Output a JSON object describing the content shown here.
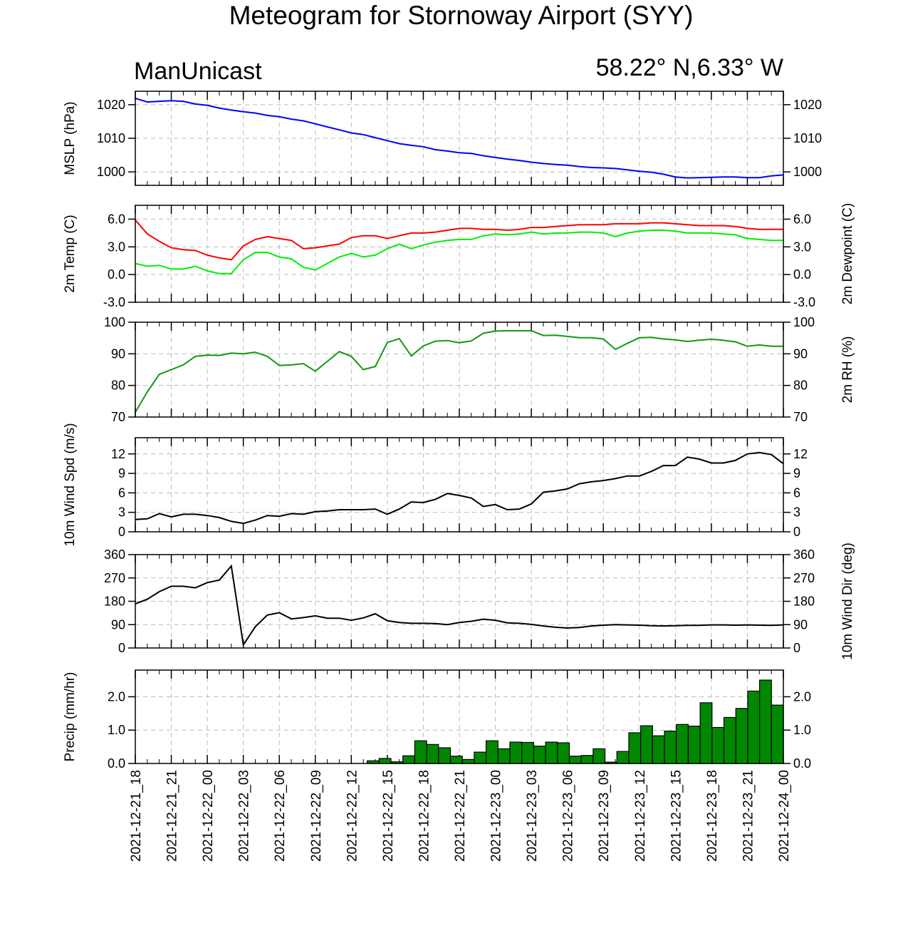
{
  "title": "Meteogram for Stornoway Airport (SYY)",
  "model": "ManUnicast",
  "location": "58.22° N,6.33° W",
  "chart_data": [
    {
      "type": "line",
      "ylabel": "MSLP (hPa)",
      "right_label": "",
      "ylim": [
        996,
        1024
      ],
      "yticks": [
        1000,
        1010,
        1020
      ],
      "yticklabels": [
        "1000",
        "1010",
        "1020"
      ],
      "series": [
        {
          "color": "#0000ff",
          "values": [
            1021.9,
            1020.8,
            1021.0,
            1021.2,
            1021.0,
            1020.2,
            1019.8,
            1019.0,
            1018.4,
            1017.9,
            1017.5,
            1016.8,
            1016.4,
            1015.7,
            1015.2,
            1014.3,
            1013.4,
            1012.5,
            1011.6,
            1011.1,
            1010.2,
            1009.3,
            1008.4,
            1007.9,
            1007.5,
            1006.6,
            1006.2,
            1005.7,
            1005.5,
            1004.8,
            1004.3,
            1003.8,
            1003.4,
            1002.9,
            1002.5,
            1002.2,
            1002.0,
            1001.6,
            1001.3,
            1001.2,
            1001.0,
            1000.6,
            1000.2,
            999.9,
            999.3,
            998.5,
            998.2,
            998.3,
            998.4,
            998.5,
            998.5,
            998.3,
            998.3,
            998.8,
            999.1
          ]
        }
      ]
    },
    {
      "type": "line",
      "ylabel": "2m Temp (C)",
      "right_label": "2m Dewpoint (C)",
      "ylim": [
        -3,
        7.5
      ],
      "yticks": [
        -3,
        0,
        3,
        6
      ],
      "yticklabels": [
        "-3.0",
        "0.0",
        "3.0",
        "6.0"
      ],
      "series": [
        {
          "color": "#ff0000",
          "values": [
            5.9,
            4.4,
            3.6,
            2.9,
            2.7,
            2.6,
            2.1,
            1.8,
            1.6,
            3.1,
            3.8,
            4.1,
            3.9,
            3.7,
            2.8,
            2.9,
            3.1,
            3.3,
            4.0,
            4.2,
            4.2,
            3.9,
            4.2,
            4.5,
            4.5,
            4.6,
            4.8,
            5.0,
            5.0,
            4.9,
            4.9,
            4.8,
            4.9,
            5.1,
            5.1,
            5.2,
            5.3,
            5.4,
            5.4,
            5.4,
            5.5,
            5.5,
            5.5,
            5.6,
            5.6,
            5.5,
            5.4,
            5.3,
            5.3,
            5.3,
            5.2,
            5.0,
            4.9,
            4.9,
            4.9
          ]
        },
        {
          "color": "#00ee00",
          "values": [
            1.2,
            0.9,
            1.0,
            0.6,
            0.6,
            0.9,
            0.4,
            0.1,
            0.1,
            1.6,
            2.4,
            2.4,
            1.9,
            1.7,
            0.8,
            0.5,
            1.2,
            1.9,
            2.3,
            1.9,
            2.1,
            2.8,
            3.3,
            2.8,
            3.2,
            3.5,
            3.7,
            3.8,
            3.8,
            4.2,
            4.4,
            4.3,
            4.4,
            4.6,
            4.4,
            4.5,
            4.5,
            4.6,
            4.6,
            4.5,
            4.1,
            4.5,
            4.7,
            4.8,
            4.8,
            4.7,
            4.5,
            4.5,
            4.5,
            4.4,
            4.3,
            3.9,
            3.8,
            3.7,
            3.7
          ]
        }
      ]
    },
    {
      "type": "line",
      "ylabel": "",
      "right_label": "2m RH (%)",
      "ylim": [
        70,
        100
      ],
      "yticks": [
        70,
        80,
        90,
        100
      ],
      "yticklabels": [
        "70",
        "80",
        "90",
        "100"
      ],
      "series": [
        {
          "color": "#119911",
          "values": [
            71.5,
            78.0,
            83.5,
            85.0,
            86.5,
            89.2,
            89.6,
            89.5,
            90.2,
            90.0,
            90.5,
            89.2,
            86.3,
            86.5,
            86.9,
            84.5,
            87.6,
            90.7,
            89.2,
            85.0,
            86.0,
            93.6,
            94.8,
            89.3,
            92.5,
            94.0,
            94.2,
            93.5,
            94.1,
            96.5,
            97.2,
            97.3,
            97.3,
            97.3,
            95.8,
            95.9,
            95.5,
            95.1,
            95.1,
            94.7,
            91.4,
            93.3,
            95.1,
            95.2,
            94.7,
            94.4,
            93.9,
            94.3,
            94.6,
            94.3,
            93.8,
            92.4,
            92.8,
            92.4,
            92.4
          ]
        }
      ]
    },
    {
      "type": "line",
      "ylabel": "10m Wind Spd (m/s)",
      "right_label": "",
      "ylim": [
        0,
        14.5
      ],
      "yticks": [
        0,
        3,
        6,
        9,
        12
      ],
      "yticklabels": [
        "0",
        "3",
        "6",
        "9",
        "12"
      ],
      "series": [
        {
          "color": "#000000",
          "values": [
            1.9,
            2.0,
            2.8,
            2.3,
            2.7,
            2.7,
            2.5,
            2.2,
            1.6,
            1.3,
            1.8,
            2.5,
            2.4,
            2.8,
            2.7,
            3.1,
            3.2,
            3.4,
            3.4,
            3.4,
            3.5,
            2.7,
            3.5,
            4.6,
            4.5,
            5.0,
            5.9,
            5.6,
            5.2,
            3.9,
            4.2,
            3.4,
            3.5,
            4.3,
            6.1,
            6.3,
            6.6,
            7.4,
            7.7,
            7.9,
            8.2,
            8.6,
            8.6,
            9.3,
            10.2,
            10.2,
            11.5,
            11.2,
            10.6,
            10.6,
            11.0,
            12.0,
            12.2,
            11.9,
            10.5
          ]
        }
      ]
    },
    {
      "type": "line",
      "ylabel": "",
      "right_label": "10m Wind Dir (deg)",
      "ylim": [
        0,
        360
      ],
      "yticks": [
        0,
        90,
        180,
        270,
        360
      ],
      "yticklabels": [
        "0",
        "90",
        "180",
        "270",
        "360"
      ],
      "series": [
        {
          "color": "#000000",
          "values": [
            170,
            188,
            217,
            238,
            238,
            232,
            252,
            262,
            316,
            12,
            82,
            127,
            136,
            112,
            117,
            124,
            115,
            115,
            107,
            116,
            132,
            105,
            98,
            95,
            95,
            94,
            90,
            98,
            103,
            111,
            107,
            97,
            95,
            91,
            85,
            80,
            77,
            79,
            85,
            88,
            90,
            89,
            88,
            86,
            85,
            86,
            87,
            87,
            89,
            89,
            88,
            89,
            88,
            87,
            89
          ]
        }
      ]
    },
    {
      "type": "bar",
      "ylabel": "Precip (mm/hr)",
      "right_label": "",
      "ylim": [
        0,
        2.8
      ],
      "yticks": [
        0,
        1,
        2
      ],
      "yticklabels": [
        "0.0",
        "1.0",
        "2.0"
      ],
      "series": [
        {
          "color": "#008800",
          "values": [
            0,
            0,
            0,
            0,
            0,
            0,
            0,
            0,
            0,
            0,
            0,
            0,
            0,
            0,
            0,
            0,
            0,
            0,
            0,
            0.08,
            0.15,
            0.05,
            0.23,
            0.68,
            0.57,
            0.47,
            0.22,
            0.12,
            0.34,
            0.68,
            0.44,
            0.64,
            0.63,
            0.52,
            0.64,
            0.62,
            0.22,
            0.24,
            0.44,
            0.04,
            0.36,
            0.92,
            1.13,
            0.83,
            0.97,
            1.17,
            1.12,
            1.82,
            1.08,
            1.38,
            1.65,
            2.17,
            2.5,
            1.75
          ]
        }
      ]
    }
  ],
  "x_axis": {
    "ticklabels": [
      "2021-12-21_18",
      "2021-12-21_21",
      "2021-12-22_00",
      "2021-12-22_03",
      "2021-12-22_06",
      "2021-12-22_09",
      "2021-12-22_12",
      "2021-12-22_15",
      "2021-12-22_18",
      "2021-12-22_21",
      "2021-12-23_00",
      "2021-12-23_03",
      "2021-12-23_06",
      "2021-12-23_09",
      "2021-12-23_12",
      "2021-12-23_15",
      "2021-12-23_18",
      "2021-12-23_21",
      "2021-12-24_00"
    ]
  }
}
